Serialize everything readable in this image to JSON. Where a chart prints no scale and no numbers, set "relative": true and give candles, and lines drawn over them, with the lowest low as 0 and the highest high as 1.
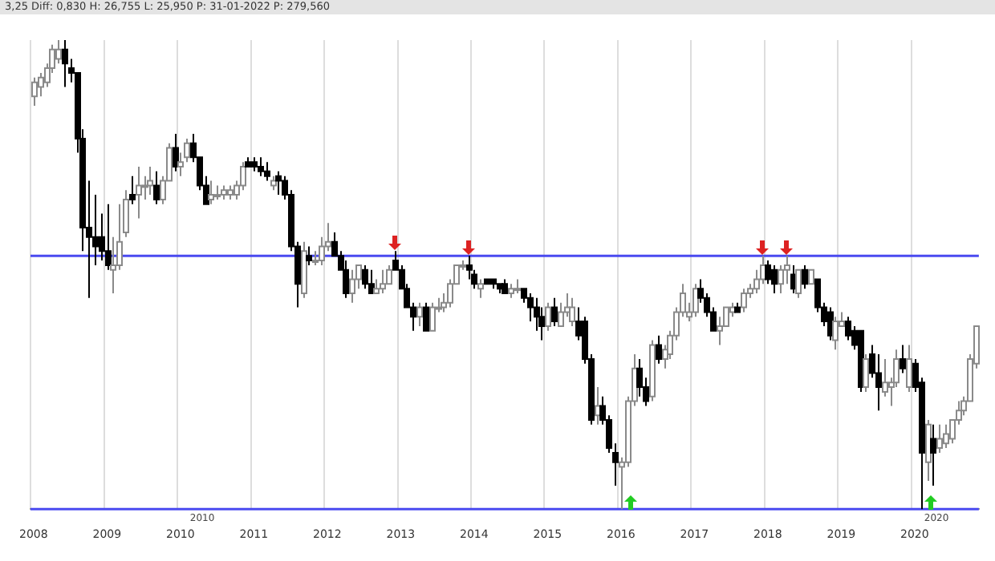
{
  "chart_data": {
    "type": "candlestick",
    "relative": true,
    "grid": "x",
    "annotations": [
      "3,25  Diff: 0,830  H: 26,755  L: 25,950  P: 31-01-2022  P: 279,560",
      "2010",
      "2020"
    ],
    "ref_lines": [
      {
        "axis": "y",
        "value": 0.54,
        "color": "#4a4af0"
      },
      {
        "axis": "y",
        "value": 0.0,
        "color": "#4a4af0"
      }
    ],
    "categories": [
      "2008",
      null,
      null,
      null,
      null,
      null,
      null,
      null,
      null,
      null,
      null,
      null,
      "2009",
      null,
      null,
      null,
      null,
      null,
      null,
      null,
      null,
      null,
      null,
      null,
      "2010",
      null,
      null,
      null,
      null,
      null,
      null,
      null,
      null,
      null,
      null,
      null,
      "2011",
      null,
      null,
      null,
      null,
      null,
      null,
      null,
      null,
      null,
      null,
      null,
      "2012",
      null,
      null,
      null,
      null,
      null,
      null,
      null,
      null,
      null,
      null,
      null,
      "2013",
      null,
      null,
      null,
      null,
      null,
      null,
      null,
      null,
      null,
      null,
      null,
      "2014",
      null,
      null,
      null,
      null,
      null,
      null,
      null,
      null,
      null,
      null,
      null,
      "2015",
      null,
      null,
      null,
      null,
      null,
      null,
      null,
      null,
      null,
      null,
      null,
      "2016",
      null,
      null,
      null,
      null,
      null,
      null,
      null,
      null,
      null,
      null,
      null,
      "2017",
      null,
      null,
      null,
      null,
      null,
      null,
      null,
      null,
      null,
      null,
      null,
      "2018",
      null,
      null,
      null,
      null,
      null,
      null,
      null,
      null,
      null,
      null,
      null,
      "2019",
      null,
      null,
      null,
      null,
      null,
      null,
      null,
      null,
      null,
      null,
      null,
      "2020",
      null,
      null,
      null,
      null,
      null,
      null,
      null,
      null,
      null,
      null
    ],
    "ohlc": [
      [
        0.88,
        0.92,
        0.86,
        0.91
      ],
      [
        0.9,
        0.93,
        0.88,
        0.92
      ],
      [
        0.91,
        0.95,
        0.9,
        0.94
      ],
      [
        0.94,
        0.99,
        0.93,
        0.98
      ],
      [
        0.96,
        1.0,
        0.95,
        0.98
      ],
      [
        0.98,
        1.0,
        0.9,
        0.95
      ],
      [
        0.94,
        0.96,
        0.91,
        0.93
      ],
      [
        0.93,
        0.93,
        0.76,
        0.79
      ],
      [
        0.79,
        0.81,
        0.55,
        0.6
      ],
      [
        0.6,
        0.7,
        0.45,
        0.58
      ],
      [
        0.58,
        0.67,
        0.52,
        0.56
      ],
      [
        0.58,
        0.63,
        0.53,
        0.55
      ],
      [
        0.55,
        0.65,
        0.51,
        0.52
      ],
      [
        0.51,
        0.58,
        0.46,
        0.52
      ],
      [
        0.52,
        0.65,
        0.51,
        0.57
      ],
      [
        0.59,
        0.68,
        0.58,
        0.66
      ],
      [
        0.67,
        0.71,
        0.65,
        0.66
      ],
      [
        0.67,
        0.73,
        0.62,
        0.69
      ],
      [
        0.69,
        0.71,
        0.66,
        0.69
      ],
      [
        0.69,
        0.73,
        0.67,
        0.7
      ],
      [
        0.69,
        0.72,
        0.65,
        0.66
      ],
      [
        0.66,
        0.71,
        0.65,
        0.7
      ],
      [
        0.7,
        0.78,
        0.7,
        0.77
      ],
      [
        0.77,
        0.8,
        0.72,
        0.73
      ],
      [
        0.73,
        0.76,
        0.71,
        0.74
      ],
      [
        0.75,
        0.79,
        0.74,
        0.78
      ],
      [
        0.78,
        0.8,
        0.74,
        0.75
      ],
      [
        0.75,
        0.75,
        0.68,
        0.69
      ],
      [
        0.69,
        0.71,
        0.65,
        0.65
      ],
      [
        0.66,
        0.7,
        0.65,
        0.67
      ],
      [
        0.67,
        0.69,
        0.66,
        0.67
      ],
      [
        0.67,
        0.69,
        0.66,
        0.68
      ],
      [
        0.67,
        0.69,
        0.66,
        0.68
      ],
      [
        0.67,
        0.7,
        0.66,
        0.69
      ],
      [
        0.69,
        0.74,
        0.68,
        0.73
      ],
      [
        0.74,
        0.75,
        0.73,
        0.73
      ],
      [
        0.74,
        0.75,
        0.72,
        0.73
      ],
      [
        0.73,
        0.75,
        0.71,
        0.72
      ],
      [
        0.72,
        0.74,
        0.7,
        0.71
      ],
      [
        0.69,
        0.71,
        0.68,
        0.7
      ],
      [
        0.71,
        0.72,
        0.67,
        0.7
      ],
      [
        0.7,
        0.71,
        0.66,
        0.67
      ],
      [
        0.67,
        0.68,
        0.55,
        0.56
      ],
      [
        0.56,
        0.57,
        0.43,
        0.48
      ],
      [
        0.46,
        0.57,
        0.45,
        0.55
      ],
      [
        0.54,
        0.56,
        0.52,
        0.53
      ],
      [
        0.53,
        0.55,
        0.52,
        0.53
      ],
      [
        0.53,
        0.58,
        0.52,
        0.56
      ],
      [
        0.56,
        0.61,
        0.55,
        0.57
      ],
      [
        0.57,
        0.59,
        0.54,
        0.54
      ],
      [
        0.54,
        0.55,
        0.51,
        0.51
      ],
      [
        0.51,
        0.53,
        0.45,
        0.46
      ],
      [
        0.46,
        0.51,
        0.44,
        0.49
      ],
      [
        0.49,
        0.52,
        0.47,
        0.52
      ],
      [
        0.51,
        0.52,
        0.47,
        0.48
      ],
      [
        0.48,
        0.51,
        0.46,
        0.46
      ],
      [
        0.46,
        0.49,
        0.46,
        0.47
      ],
      [
        0.47,
        0.51,
        0.46,
        0.48
      ],
      [
        0.48,
        0.52,
        0.48,
        0.51
      ],
      [
        0.53,
        0.55,
        0.51,
        0.51
      ],
      [
        0.51,
        0.52,
        0.47,
        0.47
      ],
      [
        0.47,
        0.48,
        0.43,
        0.43
      ],
      [
        0.43,
        0.44,
        0.38,
        0.41
      ],
      [
        0.41,
        0.44,
        0.39,
        0.43
      ],
      [
        0.43,
        0.44,
        0.38,
        0.38
      ],
      [
        0.38,
        0.44,
        0.38,
        0.43
      ],
      [
        0.43,
        0.45,
        0.42,
        0.43
      ],
      [
        0.43,
        0.46,
        0.42,
        0.44
      ],
      [
        0.44,
        0.49,
        0.43,
        0.48
      ],
      [
        0.48,
        0.52,
        0.48,
        0.52
      ],
      [
        0.52,
        0.53,
        0.51,
        0.52
      ],
      [
        0.52,
        0.54,
        0.49,
        0.51
      ],
      [
        0.5,
        0.51,
        0.47,
        0.48
      ],
      [
        0.47,
        0.49,
        0.45,
        0.48
      ],
      [
        0.49,
        0.49,
        0.48,
        0.48
      ],
      [
        0.49,
        0.49,
        0.47,
        0.48
      ],
      [
        0.48,
        0.48,
        0.46,
        0.47
      ],
      [
        0.48,
        0.49,
        0.46,
        0.46
      ],
      [
        0.46,
        0.48,
        0.45,
        0.47
      ],
      [
        0.47,
        0.49,
        0.46,
        0.47
      ],
      [
        0.47,
        0.47,
        0.44,
        0.45
      ],
      [
        0.45,
        0.46,
        0.4,
        0.43
      ],
      [
        0.43,
        0.45,
        0.38,
        0.41
      ],
      [
        0.41,
        0.43,
        0.36,
        0.39
      ],
      [
        0.39,
        0.44,
        0.38,
        0.43
      ],
      [
        0.43,
        0.45,
        0.39,
        0.4
      ],
      [
        0.39,
        0.44,
        0.39,
        0.42
      ],
      [
        0.42,
        0.46,
        0.41,
        0.43
      ],
      [
        0.4,
        0.45,
        0.39,
        0.43
      ],
      [
        0.4,
        0.43,
        0.36,
        0.37
      ],
      [
        0.4,
        0.41,
        0.31,
        0.32
      ],
      [
        0.32,
        0.33,
        0.18,
        0.19
      ],
      [
        0.2,
        0.26,
        0.18,
        0.22
      ],
      [
        0.22,
        0.24,
        0.18,
        0.19
      ],
      [
        0.19,
        0.2,
        0.12,
        0.13
      ],
      [
        0.12,
        0.14,
        0.05,
        0.1
      ],
      [
        0.09,
        0.11,
        0.0,
        0.1
      ],
      [
        0.1,
        0.24,
        0.09,
        0.23
      ],
      [
        0.23,
        0.33,
        0.22,
        0.3
      ],
      [
        0.3,
        0.32,
        0.24,
        0.26
      ],
      [
        0.26,
        0.28,
        0.22,
        0.23
      ],
      [
        0.24,
        0.36,
        0.23,
        0.35
      ],
      [
        0.35,
        0.37,
        0.31,
        0.32
      ],
      [
        0.32,
        0.35,
        0.3,
        0.34
      ],
      [
        0.33,
        0.38,
        0.32,
        0.37
      ],
      [
        0.37,
        0.43,
        0.36,
        0.42
      ],
      [
        0.42,
        0.48,
        0.41,
        0.46
      ],
      [
        0.41,
        0.44,
        0.4,
        0.42
      ],
      [
        0.42,
        0.48,
        0.41,
        0.47
      ],
      [
        0.47,
        0.49,
        0.44,
        0.45
      ],
      [
        0.45,
        0.46,
        0.41,
        0.42
      ],
      [
        0.42,
        0.43,
        0.38,
        0.38
      ],
      [
        0.38,
        0.41,
        0.35,
        0.39
      ],
      [
        0.39,
        0.43,
        0.39,
        0.43
      ],
      [
        0.42,
        0.44,
        0.41,
        0.43
      ],
      [
        0.43,
        0.44,
        0.42,
        0.42
      ],
      [
        0.43,
        0.47,
        0.42,
        0.46
      ],
      [
        0.46,
        0.48,
        0.45,
        0.47
      ],
      [
        0.47,
        0.51,
        0.46,
        0.49
      ],
      [
        0.49,
        0.54,
        0.48,
        0.52
      ],
      [
        0.52,
        0.53,
        0.48,
        0.49
      ],
      [
        0.51,
        0.52,
        0.46,
        0.48
      ],
      [
        0.48,
        0.52,
        0.46,
        0.51
      ],
      [
        0.51,
        0.54,
        0.48,
        0.52
      ],
      [
        0.5,
        0.52,
        0.46,
        0.47
      ],
      [
        0.46,
        0.51,
        0.45,
        0.51
      ],
      [
        0.51,
        0.52,
        0.47,
        0.48
      ],
      [
        0.48,
        0.51,
        0.48,
        0.51
      ],
      [
        0.49,
        0.49,
        0.42,
        0.43
      ],
      [
        0.43,
        0.44,
        0.39,
        0.4
      ],
      [
        0.42,
        0.43,
        0.36,
        0.37
      ],
      [
        0.36,
        0.41,
        0.34,
        0.4
      ],
      [
        0.39,
        0.42,
        0.39,
        0.4
      ],
      [
        0.4,
        0.41,
        0.36,
        0.37
      ],
      [
        0.38,
        0.39,
        0.34,
        0.35
      ],
      [
        0.38,
        0.38,
        0.25,
        0.26
      ],
      [
        0.26,
        0.33,
        0.25,
        0.32
      ],
      [
        0.33,
        0.35,
        0.28,
        0.29
      ],
      [
        0.29,
        0.33,
        0.21,
        0.26
      ],
      [
        0.25,
        0.32,
        0.24,
        0.27
      ],
      [
        0.26,
        0.28,
        0.22,
        0.27
      ],
      [
        0.27,
        0.34,
        0.26,
        0.32
      ],
      [
        0.32,
        0.35,
        0.29,
        0.3
      ],
      [
        0.26,
        0.35,
        0.25,
        0.32
      ],
      [
        0.31,
        0.32,
        0.25,
        0.26
      ],
      [
        0.27,
        0.28,
        0.0,
        0.12
      ],
      [
        0.1,
        0.19,
        0.06,
        0.18
      ],
      [
        0.15,
        0.18,
        0.05,
        0.12
      ],
      [
        0.13,
        0.18,
        0.12,
        0.15
      ],
      [
        0.14,
        0.18,
        0.13,
        0.16
      ],
      [
        0.15,
        0.19,
        0.14,
        0.19
      ],
      [
        0.19,
        0.23,
        0.18,
        0.21
      ],
      [
        0.21,
        0.24,
        0.2,
        0.23
      ],
      [
        0.23,
        0.33,
        0.23,
        0.32
      ],
      [
        0.31,
        0.39,
        0.3,
        0.39
      ]
    ]
  }
}
